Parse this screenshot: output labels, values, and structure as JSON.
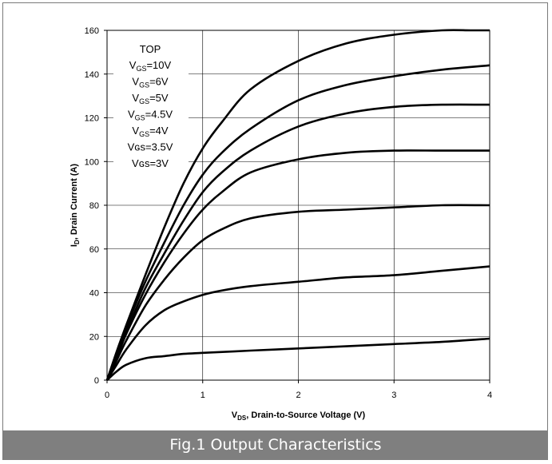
{
  "chart_data": {
    "type": "line",
    "title": "",
    "xlabel": {
      "prefix": "V",
      "sub": "DS",
      "suffix": ", Drain-to-Source Voltage (V)"
    },
    "ylabel": {
      "prefix": "I",
      "sub": "D",
      "suffix": ", Drain Current (A)"
    },
    "xlim": [
      0,
      4
    ],
    "ylim": [
      0,
      160
    ],
    "xticks": [
      0,
      1,
      2,
      3,
      4
    ],
    "yticks": [
      0,
      20,
      40,
      60,
      80,
      100,
      120,
      140,
      160
    ],
    "grid": true,
    "legend": {
      "placement": "top-left",
      "header": "TOP",
      "entries": [
        {
          "prefix": "V",
          "sub": "GS",
          "value": "=10V"
        },
        {
          "prefix": "V",
          "sub": "GS",
          "value": "=6V"
        },
        {
          "prefix": "V",
          "sub": "GS",
          "value": "=5V"
        },
        {
          "prefix": "V",
          "sub": "GS",
          "value": "=4.5V"
        },
        {
          "prefix": "V",
          "sub": "GS",
          "value": "=4V"
        },
        {
          "prefix": "Vɢs",
          "sub": "",
          "value": "=3.5V"
        },
        {
          "prefix": "Vɢs",
          "sub": "",
          "value": "=3V"
        }
      ]
    },
    "series": [
      {
        "x": [
          0,
          0.1,
          0.2,
          0.4,
          0.6,
          0.8,
          1.0,
          1.2,
          1.5,
          2.0,
          2.5,
          3.0,
          3.5,
          3.8,
          4.0
        ],
        "values": [
          0,
          13,
          25,
          48,
          70,
          90,
          106,
          118,
          133,
          146,
          154,
          158,
          160,
          160,
          160
        ]
      },
      {
        "x": [
          0,
          0.1,
          0.2,
          0.4,
          0.6,
          0.8,
          1.0,
          1.2,
          1.5,
          2.0,
          2.5,
          3.0,
          3.5,
          4.0
        ],
        "values": [
          0,
          12,
          24,
          45,
          63,
          80,
          94,
          104,
          115,
          128,
          135,
          139,
          142,
          144
        ]
      },
      {
        "x": [
          0,
          0.1,
          0.2,
          0.4,
          0.6,
          0.8,
          1.0,
          1.2,
          1.5,
          2.0,
          2.5,
          3.0,
          3.5,
          4.0
        ],
        "values": [
          0,
          11,
          22,
          42,
          58,
          73,
          86,
          95,
          105,
          116,
          122,
          125,
          126,
          126
        ]
      },
      {
        "x": [
          0,
          0.1,
          0.2,
          0.4,
          0.6,
          0.8,
          1.0,
          1.2,
          1.5,
          2.0,
          2.5,
          3.0,
          3.5,
          4.0
        ],
        "values": [
          0,
          10,
          21,
          39,
          54,
          67,
          78,
          86,
          95,
          101,
          104,
          105,
          105,
          105
        ]
      },
      {
        "x": [
          0,
          0.1,
          0.2,
          0.4,
          0.6,
          0.8,
          1.0,
          1.2,
          1.5,
          2.0,
          2.5,
          3.0,
          3.5,
          4.0
        ],
        "values": [
          0,
          9,
          18,
          34,
          46,
          56,
          64,
          69,
          74,
          77,
          78,
          79,
          80,
          80
        ]
      },
      {
        "x": [
          0,
          0.1,
          0.2,
          0.4,
          0.6,
          0.8,
          1.0,
          1.2,
          1.5,
          2.0,
          2.5,
          3.0,
          3.5,
          4.0
        ],
        "values": [
          0,
          7,
          14,
          25,
          32,
          36,
          39,
          41,
          43,
          45,
          47,
          48,
          50,
          52
        ]
      },
      {
        "x": [
          0,
          0.1,
          0.2,
          0.4,
          0.6,
          0.8,
          1.0,
          1.5,
          2.0,
          2.5,
          3.0,
          3.5,
          4.0
        ],
        "values": [
          0,
          4,
          7,
          10,
          11,
          12,
          12.5,
          13.5,
          14.5,
          15.5,
          16.5,
          17.5,
          19
        ]
      }
    ]
  },
  "caption": "Fig.1 Output Characteristics"
}
